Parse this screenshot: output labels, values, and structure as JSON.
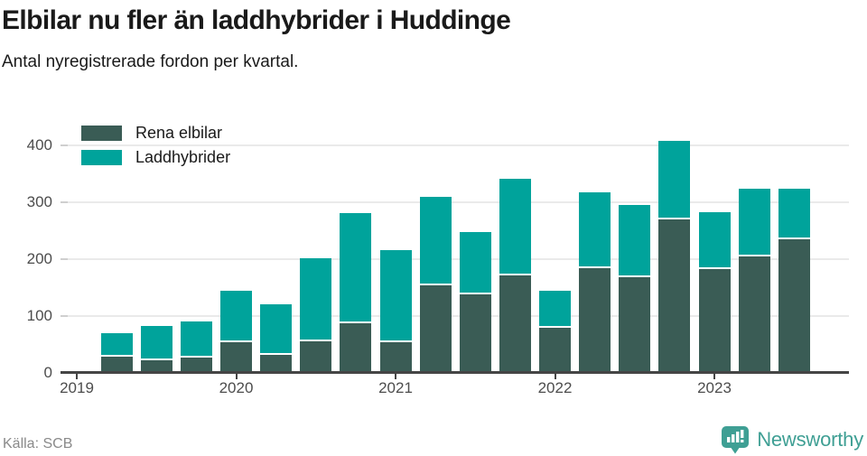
{
  "header": {
    "title": "Elbilar nu fler än laddhybrider i Huddinge",
    "subtitle": "Antal nyregistrerade fordon per kvartal."
  },
  "legend": [
    {
      "label": "Rena elbilar",
      "color": "#3a5c55"
    },
    {
      "label": "Laddhybrider",
      "color": "#00a39b"
    }
  ],
  "footer": {
    "source": "Källa: SCB",
    "brand": "Newsworthy",
    "brand_color": "#3f9f94"
  },
  "colors": {
    "rena_elbilar": "#3a5c55",
    "laddhybrider": "#00a39b",
    "axis": "#454545",
    "gridline": "#eaeaea"
  },
  "chart_data": {
    "type": "bar",
    "stacked": true,
    "title": "Elbilar nu fler än laddhybrider i Huddinge",
    "subtitle": "Antal nyregistrerade fordon per kvartal.",
    "categories": [
      "2019 Q2",
      "2019 Q3",
      "2019 Q4",
      "2020 Q1",
      "2020 Q2",
      "2020 Q3",
      "2020 Q4",
      "2021 Q1",
      "2021 Q2",
      "2021 Q3",
      "2021 Q4",
      "2022 Q1",
      "2022 Q2",
      "2022 Q3",
      "2022 Q4",
      "2023 Q1",
      "2023 Q2",
      "2023 Q3"
    ],
    "series": [
      {
        "name": "Rena elbilar",
        "color": "#3a5c55",
        "values": [
          26,
          19,
          24,
          50,
          28,
          52,
          84,
          51,
          151,
          135,
          168,
          76,
          181,
          165,
          266,
          180,
          201,
          232
        ]
      },
      {
        "name": "Laddhybrider",
        "color": "#00a39b",
        "values": [
          41,
          61,
          64,
          92,
          89,
          146,
          193,
          161,
          155,
          110,
          170,
          66,
          134,
          127,
          139,
          99,
          120,
          89
        ]
      }
    ],
    "x_tick_labels": [
      "2019",
      "2020",
      "2021",
      "2022",
      "2023"
    ],
    "xlabel": "",
    "ylabel": "",
    "ylim": [
      0,
      420
    ],
    "yticks": [
      0,
      100,
      200,
      300,
      400
    ],
    "grid": "horizontal",
    "legend_position": "top-left",
    "source": "Källa: SCB"
  }
}
